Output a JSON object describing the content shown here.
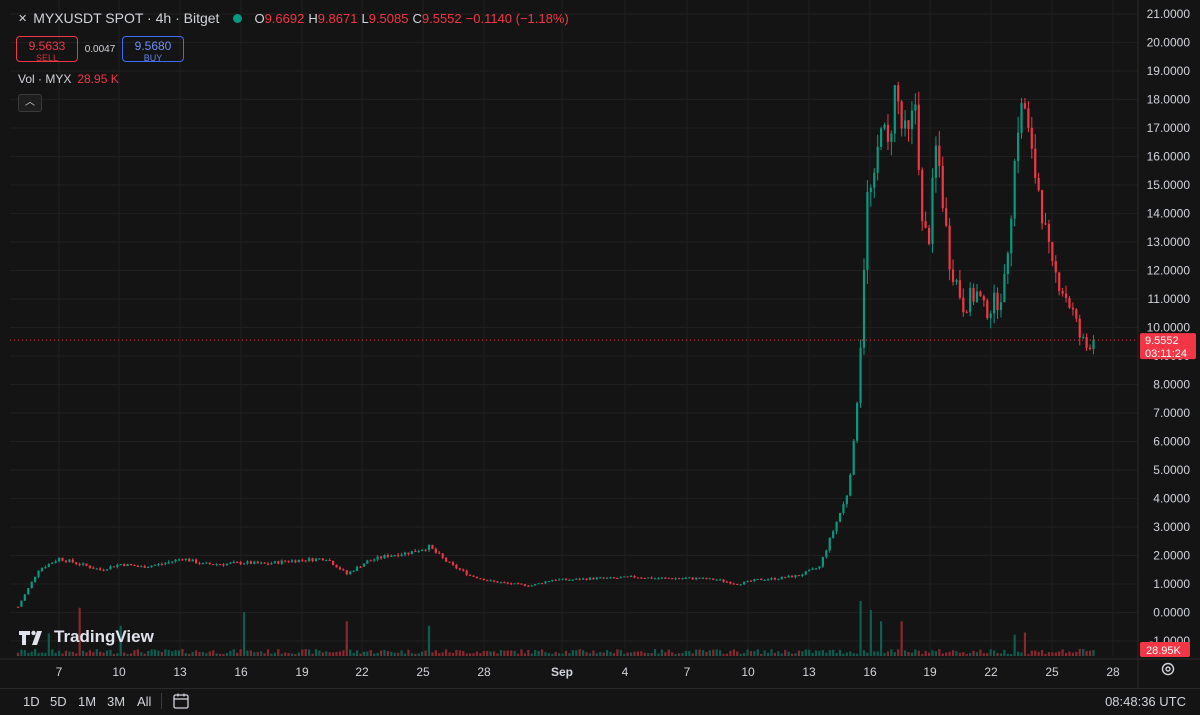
{
  "header": {
    "symbol": "MYXUSDT SPOT · 4h · Bitget",
    "o_label": "O",
    "o_value": "9.6692",
    "h_label": "H",
    "h_value": "9.8671",
    "l_label": "L",
    "l_value": "9.5085",
    "c_label": "C",
    "c_value": "9.5552",
    "change": "−0.1140 (−1.18%)"
  },
  "trade": {
    "sell_price": "9.5633",
    "sell_label": "SELL",
    "spread": "0.0047",
    "buy_price": "9.5680",
    "buy_label": "BUY"
  },
  "volume": {
    "label": "Vol · MYX",
    "value": "28.95 K"
  },
  "logo_text": "TradingView",
  "bottom": {
    "timeframes": [
      "1D",
      "5D",
      "1M",
      "3M",
      "All"
    ],
    "clock": "08:48:36 UTC"
  },
  "colors": {
    "up": "#089981",
    "down": "#f23645",
    "bg": "#141414",
    "grid": "#1f1f1f",
    "last_price": "#f23645"
  },
  "chart_data": {
    "type": "candlestick",
    "title": "MYXUSDT SPOT · 4h · Bitget",
    "y_ticks": [
      "21.0000",
      "20.0000",
      "19.0000",
      "18.0000",
      "17.0000",
      "16.0000",
      "15.0000",
      "14.0000",
      "13.0000",
      "12.0000",
      "11.0000",
      "10.0000",
      "9.0000",
      "8.0000",
      "7.0000",
      "6.0000",
      "5.0000",
      "4.0000",
      "3.0000",
      "2.0000",
      "1.0000",
      "0.0000",
      "-1.0000"
    ],
    "x_ticks": [
      "7",
      "10",
      "13",
      "16",
      "19",
      "22",
      "25",
      "28",
      "Sep",
      "4",
      "7",
      "10",
      "13",
      "16",
      "19",
      "22",
      "25",
      "28"
    ],
    "ylim": [
      -1.2,
      21.2
    ],
    "last_price": 9.5552,
    "last_price_label": "9.5552",
    "countdown": "03:11:24",
    "volume_label": "28.95K",
    "close_path": [
      [
        0,
        0.2
      ],
      [
        1,
        1.5
      ],
      [
        2,
        1.9
      ],
      [
        3,
        1.7
      ],
      [
        4,
        1.5
      ],
      [
        5,
        1.7
      ],
      [
        6,
        1.6
      ],
      [
        7,
        1.7
      ],
      [
        8,
        1.9
      ],
      [
        9,
        1.7
      ],
      [
        10,
        1.7
      ],
      [
        11,
        1.75
      ],
      [
        12,
        1.7
      ],
      [
        13,
        1.8
      ],
      [
        14,
        1.85
      ],
      [
        15,
        1.9
      ],
      [
        16,
        1.35
      ],
      [
        17,
        1.8
      ],
      [
        18,
        2.0
      ],
      [
        19,
        2.1
      ],
      [
        20,
        2.3
      ],
      [
        21,
        1.7
      ],
      [
        22,
        1.3
      ],
      [
        23,
        1.1
      ],
      [
        24,
        1.0
      ],
      [
        25,
        0.95
      ],
      [
        26,
        1.15
      ],
      [
        27,
        1.15
      ],
      [
        28,
        1.2
      ],
      [
        29,
        1.2
      ],
      [
        30,
        1.25
      ],
      [
        31,
        1.2
      ],
      [
        32,
        1.2
      ],
      [
        33,
        1.2
      ],
      [
        34,
        1.15
      ],
      [
        35,
        1.0
      ],
      [
        36,
        1.15
      ],
      [
        37,
        1.2
      ],
      [
        38,
        1.3
      ],
      [
        39,
        1.6
      ],
      [
        40,
        3.5
      ],
      [
        40.3,
        4.0
      ],
      [
        40.7,
        6.0
      ],
      [
        41,
        9.5
      ],
      [
        41.3,
        14.5
      ],
      [
        41.7,
        15.0
      ],
      [
        42,
        17.5
      ],
      [
        42.3,
        16.0
      ],
      [
        42.7,
        18.5
      ],
      [
        43,
        17.0
      ],
      [
        43.3,
        16.5
      ],
      [
        43.7,
        18.0
      ],
      [
        44,
        13.5
      ],
      [
        44.3,
        13.0
      ],
      [
        44.7,
        16.5
      ],
      [
        45,
        14.5
      ],
      [
        45.3,
        12.5
      ],
      [
        45.7,
        11.5
      ],
      [
        46,
        10.8
      ],
      [
        46.3,
        11.0
      ],
      [
        46.7,
        11.2
      ],
      [
        47,
        10.6
      ],
      [
        47.3,
        10.7
      ],
      [
        47.7,
        11.0
      ],
      [
        48,
        11.5
      ],
      [
        48.3,
        14.0
      ],
      [
        48.7,
        17.5
      ],
      [
        49,
        17.7
      ],
      [
        49.3,
        16.0
      ],
      [
        49.7,
        14.8
      ],
      [
        50,
        13.3
      ],
      [
        50.3,
        12.0
      ],
      [
        50.7,
        11.6
      ],
      [
        51,
        11.1
      ],
      [
        51.3,
        10.6
      ],
      [
        51.7,
        9.6
      ],
      [
        52,
        9.3
      ],
      [
        52.3,
        9.7
      ],
      [
        52.4,
        9.555
      ]
    ],
    "volume_spikes": [
      [
        1.5,
        0.28
      ],
      [
        3,
        0.85
      ],
      [
        5,
        0.45
      ],
      [
        11,
        0.75
      ],
      [
        16,
        0.55
      ],
      [
        20,
        0.45
      ],
      [
        41,
        1.0
      ],
      [
        41.5,
        0.8
      ],
      [
        42,
        0.55
      ],
      [
        43,
        0.55
      ],
      [
        48.5,
        0.25
      ],
      [
        49,
        0.3
      ]
    ]
  }
}
